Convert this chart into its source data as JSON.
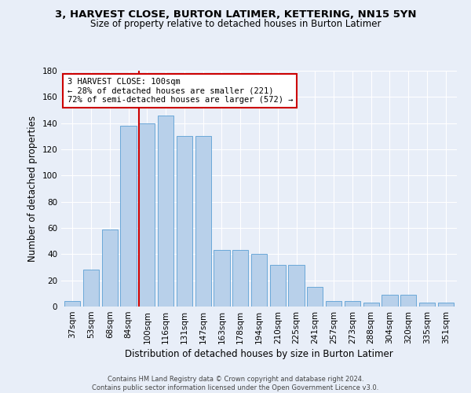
{
  "title_line1": "3, HARVEST CLOSE, BURTON LATIMER, KETTERING, NN15 5YN",
  "title_line2": "Size of property relative to detached houses in Burton Latimer",
  "xlabel": "Distribution of detached houses by size in Burton Latimer",
  "ylabel": "Number of detached properties",
  "categories": [
    "37sqm",
    "53sqm",
    "68sqm",
    "84sqm",
    "100sqm",
    "116sqm",
    "131sqm",
    "147sqm",
    "163sqm",
    "178sqm",
    "194sqm",
    "210sqm",
    "225sqm",
    "241sqm",
    "257sqm",
    "273sqm",
    "288sqm",
    "304sqm",
    "320sqm",
    "335sqm",
    "351sqm"
  ],
  "values": [
    4,
    28,
    59,
    138,
    140,
    146,
    130,
    130,
    43,
    43,
    40,
    32,
    32,
    15,
    4,
    4,
    3,
    9,
    9,
    3,
    3
  ],
  "bar_color": "#b8d0ea",
  "bar_edge_color": "#5a9fd4",
  "vline_color": "#cc0000",
  "vline_x": 3.575,
  "ylim_max": 180,
  "yticks": [
    0,
    20,
    40,
    60,
    80,
    100,
    120,
    140,
    160,
    180
  ],
  "annotation_line1": "3 HARVEST CLOSE: 100sqm",
  "annotation_line2": "← 28% of detached houses are smaller (221)",
  "annotation_line3": "72% of semi-detached houses are larger (572) →",
  "annotation_box_facecolor": "#ffffff",
  "annotation_box_edgecolor": "#cc0000",
  "footer_line1": "Contains HM Land Registry data © Crown copyright and database right 2024.",
  "footer_line2": "Contains public sector information licensed under the Open Government Licence v3.0.",
  "background_color": "#e8eef8",
  "grid_color": "#ffffff",
  "title1_fontsize": 9.5,
  "title2_fontsize": 8.5,
  "ylabel_fontsize": 8.5,
  "xlabel_fontsize": 8.5,
  "tick_fontsize": 7.5,
  "annotation_fontsize": 7.5,
  "footer_fontsize": 6.0
}
